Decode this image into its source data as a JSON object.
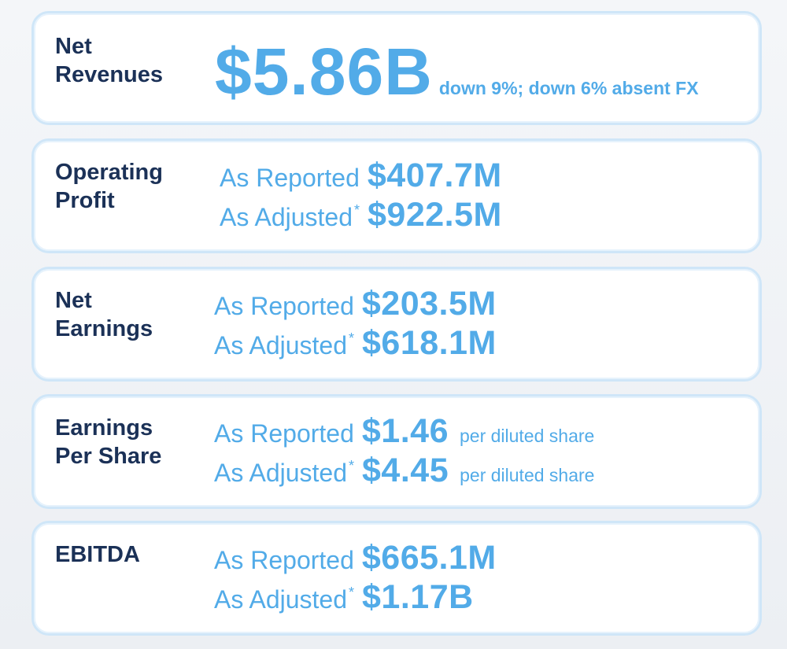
{
  "net_revenues": {
    "label_line1": "Net",
    "label_line2": "Revenues",
    "value": "$5.86B",
    "note": "down 9%; down 6% absent FX"
  },
  "operating_profit": {
    "label_line1": "Operating",
    "label_line2": "Profit",
    "reported_label": "As Reported",
    "reported_value": "$407.7M",
    "adjusted_label": "As Adjusted",
    "adjusted_marker": "*",
    "adjusted_value": "$922.5M"
  },
  "net_earnings": {
    "label_line1": "Net",
    "label_line2": "Earnings",
    "reported_label": "As Reported",
    "reported_value": "$203.5M",
    "adjusted_label": "As Adjusted",
    "adjusted_marker": "*",
    "adjusted_value": "$618.1M"
  },
  "eps": {
    "label_line1": "Earnings",
    "label_line2": "Per Share",
    "reported_label": "As Reported",
    "reported_value": "$1.46",
    "reported_unit": "per diluted share",
    "adjusted_label": "As Adjusted",
    "adjusted_marker": "*",
    "adjusted_value": "$4.45",
    "adjusted_unit": "per diluted share"
  },
  "ebitda": {
    "label_line1": "EBITDA",
    "reported_label": "As Reported",
    "reported_value": "$665.1M",
    "adjusted_label": "As Adjusted",
    "adjusted_marker": "*",
    "adjusted_value": "$1.17B"
  },
  "colors": {
    "label_navy": "#1b3157",
    "accent_blue": "#52abe8",
    "card_border": "#cfe6f8"
  }
}
